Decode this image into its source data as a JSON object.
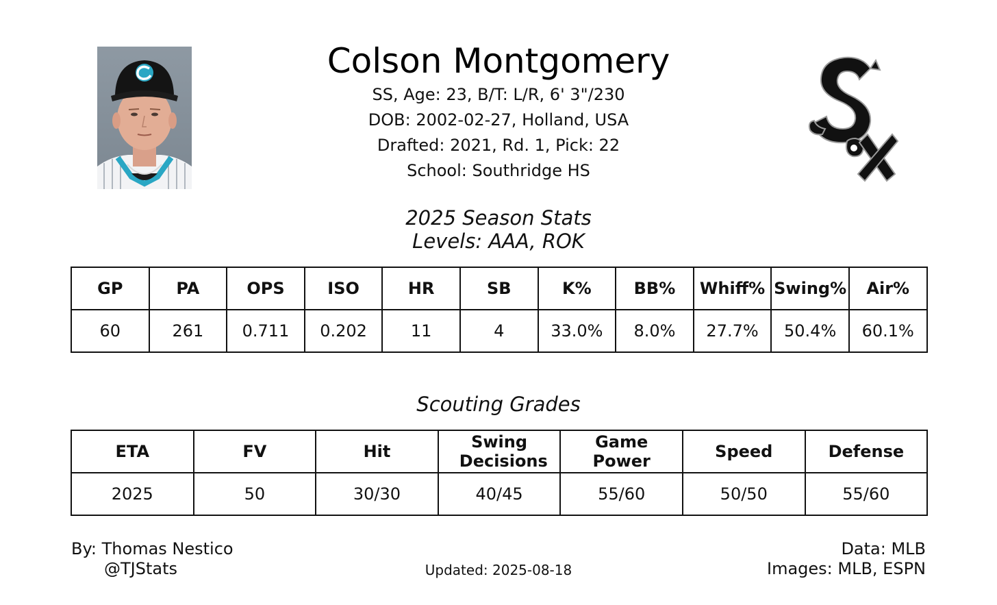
{
  "player": {
    "name": "Colson Montgomery",
    "line1": "SS, Age: 23, B/T: L/R, 6' 3\"/230",
    "line2": "DOB: 2002-02-27, Holland, USA",
    "line3": "Drafted: 2021, Rd. 1, Pick: 22",
    "line4": "School: Southridge HS"
  },
  "stats": {
    "title": "2025 Season Stats",
    "levels": "Levels: AAA, ROK",
    "headers": [
      "GP",
      "PA",
      "OPS",
      "ISO",
      "HR",
      "SB",
      "K%",
      "BB%",
      "Whiff%",
      "Swing%",
      "Air%"
    ],
    "values": [
      "60",
      "261",
      "0.711",
      "0.202",
      "11",
      "4",
      "33.0%",
      "8.0%",
      "27.7%",
      "50.4%",
      "60.1%"
    ]
  },
  "grades": {
    "title": "Scouting Grades",
    "headers": [
      "ETA",
      "FV",
      "Hit",
      "Swing Decisions",
      "Game Power",
      "Speed",
      "Defense"
    ],
    "values": [
      "2025",
      "50",
      "30/30",
      "40/45",
      "55/60",
      "50/50",
      "55/60"
    ]
  },
  "footer": {
    "by": "By: Thomas Nestico",
    "handle": "@TJStats",
    "updated": "Updated: 2025-08-18",
    "data": "Data: MLB",
    "images": "Images: MLB, ESPN"
  },
  "icons": {
    "photo": "player-headshot",
    "logo": "white-sox-logo"
  },
  "colors": {
    "photo_bg": "#8e99a3",
    "cap": "#111111",
    "jersey_accent": "#2aa7c4"
  }
}
